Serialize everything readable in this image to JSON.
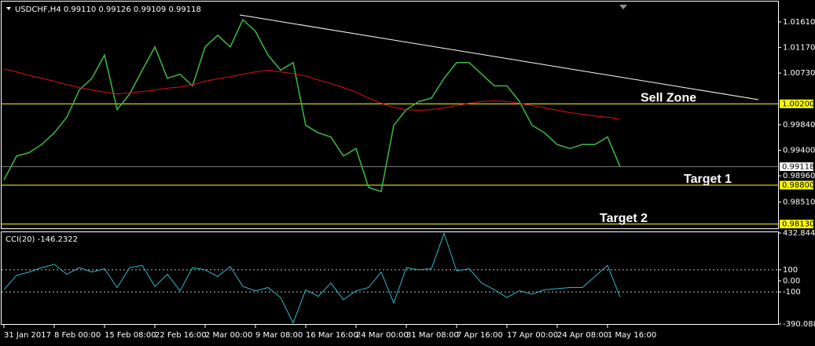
{
  "chart_data": [
    {
      "type": "line",
      "title": "USDCHF,H4  0.99110 0.99126 0.99109 0.99118",
      "categories": [
        "31 Jan 2017",
        null,
        null,
        null,
        "8 Feb 00:00",
        null,
        null,
        null,
        "15 Feb 08:00",
        null,
        null,
        null,
        "22 Feb 16:00",
        null,
        null,
        null,
        "2 Mar 00:00",
        null,
        null,
        null,
        "9 Mar 08:00",
        null,
        null,
        null,
        "16 Mar 16:00",
        null,
        null,
        null,
        "24 Mar 00:00",
        null,
        null,
        null,
        "31 Mar 08:00",
        null,
        null,
        null,
        "7 Apr 16:00",
        null,
        null,
        null,
        "17 Apr 00:00",
        null,
        null,
        null,
        "24 Apr 08:00",
        null,
        null,
        null,
        "1 May 16:00",
        null
      ],
      "series": [
        {
          "color": "#3cb043",
          "values": [
            0.9889,
            0.993,
            0.9936,
            0.995,
            0.997,
            0.9997,
            1.0044,
            1.0064,
            1.0104,
            1.001,
            1.0037,
            1.0078,
            1.0118,
            1.0064,
            1.0071,
            1.0051,
            1.0118,
            1.0138,
            1.0118,
            1.0165,
            1.0145,
            1.0104,
            1.0078,
            1.0091,
            0.9983,
            0.997,
            0.9963,
            0.993,
            0.9943,
            0.9876,
            0.9869,
            0.9983,
            1.001,
            1.0024,
            1.003,
            1.0064,
            1.0091,
            1.0091,
            1.0071,
            1.0051,
            1.0051,
            1.0024,
            0.9983,
            0.997,
            0.995,
            0.9943,
            0.995,
            0.995,
            0.9963,
            0.99118
          ]
        },
        {
          "color": "#e01010",
          "values": [
            1.008,
            1.0075,
            1.0069,
            1.0064,
            1.0059,
            1.0053,
            1.0048,
            1.0044,
            1.004,
            1.0037,
            1.0039,
            1.0041,
            1.0044,
            1.0047,
            1.0049,
            1.0053,
            1.0059,
            1.0063,
            1.0067,
            1.0071,
            1.0075,
            1.0078,
            1.0075,
            1.0072,
            1.0068,
            1.0061,
            1.0055,
            1.0048,
            1.004,
            1.003,
            1.0021,
            1.0014,
            1.001,
            1.0009,
            1.001,
            1.0013,
            1.0017,
            1.0021,
            1.0024,
            1.0025,
            1.0024,
            1.0021,
            1.0017,
            1.0013,
            1.0009,
            1.0005,
            1.0002,
            0.9999,
            0.9997,
            0.9994
          ]
        }
      ],
      "ylim": [
        0.9807,
        1.0188
      ],
      "yticks": [
        {
          "value": 1.0161,
          "label": "1.01610"
        },
        {
          "value": 1.0117,
          "label": "1.01170"
        },
        {
          "value": 1.0073,
          "label": "1.00730"
        },
        {
          "value": 0.9984,
          "label": "0.99840"
        },
        {
          "value": 0.994,
          "label": "0.99400"
        },
        {
          "value": 0.9896,
          "label": "0.98960"
        },
        {
          "value": 0.9851,
          "label": "0.98510"
        }
      ],
      "levels": [
        {
          "value": 1.002,
          "label": "1.00200",
          "text": "Sell Zone",
          "color": "#ffff00"
        },
        {
          "value": 0.988,
          "label": "0.98800",
          "text": "Target 1",
          "color": "#ffff00"
        },
        {
          "value": 0.9813,
          "label": "0.98130",
          "text": "Target 2",
          "color": "#ffff00"
        },
        {
          "value": 0.99118,
          "label": "0.99118",
          "color": "#808080"
        }
      ]
    },
    {
      "type": "line",
      "title": "CCI(20) -146.2322",
      "series": [
        {
          "color": "#30b8c8",
          "values": [
            -80,
            50,
            80,
            120,
            150,
            60,
            120,
            80,
            110,
            -60,
            120,
            140,
            -50,
            60,
            -90,
            120,
            100,
            40,
            130,
            -50,
            -90,
            -60,
            -150,
            -380,
            -80,
            -140,
            -20,
            -170,
            -90,
            -60,
            80,
            -200,
            120,
            100,
            110,
            430,
            90,
            110,
            -20,
            -80,
            -150,
            -90,
            -120,
            -80,
            -70,
            -60,
            -60,
            40,
            140,
            -146.2322
          ]
        }
      ],
      "ylim": [
        -390.0885,
        432.8441
      ],
      "yticks": [
        432.8441,
        100,
        {
          "value": 0,
          "label": "0.00"
        },
        -100,
        -390.0885
      ]
    }
  ]
}
